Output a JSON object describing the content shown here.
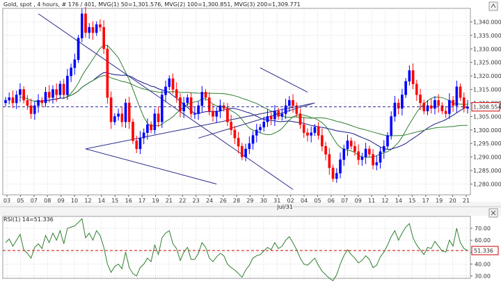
{
  "chart_data": [
    {
      "type": "candlestick",
      "header": "Gold, spot , 4 hours, # 176 / 401, MVG(1) 50=1,301.576, MVG(2) 100=1,300.851, MVG(3) 200=1,309.771",
      "instrument": "Gold, spot",
      "timeframe": "4 hours",
      "ylim": [
        1276,
        1345
      ],
      "yticks": [
        1280,
        1285,
        1290,
        1295,
        1300,
        1305,
        1310,
        1315,
        1320,
        1325,
        1330,
        1335,
        1340
      ],
      "ytick_labels": [
        "1,280.000",
        "1,285.000",
        "1,290.000",
        "1,295.000",
        "1,300.000",
        "1,305.000",
        "1,310.000",
        "1,315.000",
        "1,320.000",
        "1,325.000",
        "1,330.000",
        "1,335.000",
        "1,340.000"
      ],
      "x_tick_labels": [
        "03",
        "05",
        "07",
        "08",
        "09",
        "10",
        "12",
        "14",
        "15",
        "16",
        "17",
        "19",
        "21",
        "22",
        "23",
        "24",
        "26",
        "28",
        "29",
        "30",
        "31",
        "02",
        "04",
        "05",
        "06",
        "07",
        "09",
        "11",
        "12",
        "14",
        "15",
        "17",
        "19",
        "20",
        "21"
      ],
      "month_label": "Jul/31",
      "current_price": 1308.554,
      "current_price_label": "1,308.554",
      "bullish_color": "#0000ff",
      "bearish_color": "#ff0000",
      "closes": [
        1311,
        1312,
        1310,
        1313,
        1315,
        1311,
        1309,
        1306,
        1309,
        1311,
        1310,
        1314,
        1312,
        1315,
        1313,
        1317,
        1313,
        1320,
        1323,
        1326,
        1334,
        1343,
        1336,
        1338,
        1336,
        1339,
        1338,
        1330,
        1312,
        1303,
        1305,
        1306,
        1303,
        1310,
        1303,
        1296,
        1293,
        1297,
        1299,
        1302,
        1300,
        1306,
        1303,
        1313,
        1316,
        1319,
        1315,
        1312,
        1307,
        1310,
        1312,
        1306,
        1306,
        1309,
        1314,
        1312,
        1307,
        1305,
        1307,
        1309,
        1308,
        1303,
        1300,
        1297,
        1294,
        1290,
        1293,
        1295,
        1298,
        1300,
        1301,
        1303,
        1305,
        1304,
        1307,
        1305,
        1306,
        1309,
        1311,
        1309,
        1306,
        1302,
        1299,
        1298,
        1299,
        1301,
        1298,
        1294,
        1291,
        1286,
        1282,
        1284,
        1289,
        1293,
        1296,
        1294,
        1292,
        1289,
        1290,
        1293,
        1291,
        1287,
        1288,
        1292,
        1294,
        1298,
        1305,
        1310,
        1308,
        1313,
        1318,
        1322,
        1317,
        1313,
        1310,
        1307,
        1309,
        1308,
        1311,
        1309,
        1307,
        1306,
        1311,
        1309,
        1316,
        1312,
        1308,
        1308.5
      ],
      "moving_averages": [
        {
          "name": "MVG(1) 50",
          "value": 1301.576,
          "color": "#2f7f2f"
        },
        {
          "name": "MVG(2) 100",
          "value": 1300.851,
          "color": "#151585"
        },
        {
          "name": "MVG(3) 200",
          "value": 1309.771,
          "color": "#2f7f2f"
        }
      ],
      "trendlines": [
        {
          "from": [
            9,
            1343
          ],
          "to": [
            79,
            1278
          ]
        },
        {
          "from": [
            22,
            1293
          ],
          "to": [
            58,
            1280
          ]
        },
        {
          "from": [
            22,
            1293
          ],
          "to": [
            85,
            1310
          ]
        },
        {
          "from": [
            53,
            1297
          ],
          "to": [
            85,
            1310
          ]
        },
        {
          "from": [
            70,
            1323
          ],
          "to": [
            83,
            1314
          ]
        }
      ]
    },
    {
      "type": "line",
      "header": "RSI(1) 14=51.336",
      "indicator": "RSI(1) 14",
      "value": 51.336,
      "value_label": "51.336",
      "ylim": [
        28,
        80
      ],
      "yticks": [
        30,
        40,
        50,
        60,
        70
      ],
      "ytick_labels": [
        "30.00",
        "40.00",
        "50.00",
        "60.00",
        "70.00"
      ],
      "reference_level": 51.336,
      "line_color": "#2f7f2f",
      "values": [
        58,
        61,
        55,
        60,
        65,
        52,
        49,
        45,
        54,
        57,
        53,
        64,
        58,
        66,
        60,
        68,
        57,
        70,
        71,
        72,
        75,
        78,
        62,
        66,
        60,
        68,
        64,
        54,
        40,
        33,
        38,
        40,
        36,
        50,
        37,
        32,
        30,
        37,
        40,
        45,
        42,
        56,
        48,
        62,
        66,
        68,
        57,
        53,
        43,
        50,
        54,
        44,
        44,
        49,
        58,
        54,
        45,
        42,
        46,
        49,
        47,
        40,
        37,
        35,
        32,
        29,
        35,
        39,
        45,
        47,
        48,
        51,
        54,
        52,
        58,
        53,
        55,
        60,
        63,
        58,
        52,
        45,
        40,
        39,
        42,
        45,
        39,
        34,
        31,
        28,
        26,
        31,
        40,
        47,
        52,
        48,
        45,
        41,
        43,
        47,
        44,
        37,
        39,
        46,
        50,
        56,
        63,
        68,
        60,
        66,
        71,
        74,
        62,
        56,
        52,
        48,
        54,
        53,
        59,
        55,
        51,
        50,
        60,
        55,
        70,
        58,
        53,
        51.3
      ]
    }
  ]
}
